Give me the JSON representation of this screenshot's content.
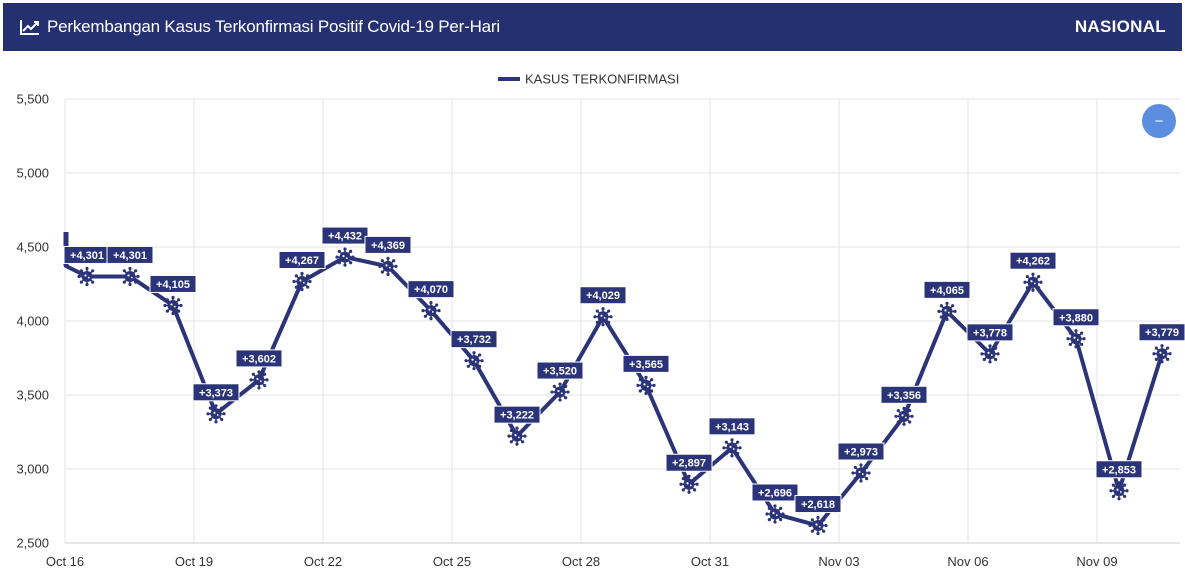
{
  "header": {
    "title": "Perkembangan Kasus Terkonfirmasi Positif Covid-19 Per-Hari",
    "region": "NASIONAL",
    "icon": "line-chart-icon"
  },
  "colors": {
    "header_bg": "#253070",
    "series": "#2b3478",
    "zoom_button": "#5b8de0"
  },
  "zoom_button": {
    "label": "−",
    "icon": "minus-icon"
  },
  "chart_data": {
    "type": "line",
    "legend": {
      "position": "top-center",
      "entries": [
        "KASUS TERKONFIRMASI"
      ]
    },
    "grid": true,
    "ylim": [
      2500,
      5500
    ],
    "yticks": [
      "2,500",
      "3,000",
      "3,500",
      "4,000",
      "4,500",
      "5,000",
      "5,500"
    ],
    "ytick_values": [
      2500,
      3000,
      3500,
      4000,
      4500,
      5000,
      5500
    ],
    "xlim": [
      "Oct 16",
      "Nov 11"
    ],
    "xticks": [
      "Oct 16",
      "Oct 19",
      "Oct 22",
      "Oct 25",
      "Oct 28",
      "Oct 31",
      "Nov 03",
      "Nov 06",
      "Nov 09"
    ],
    "series": [
      {
        "name": "KASUS TERKONFIRMASI",
        "x": [
          "Oct 16",
          "Oct 17",
          "Oct 18",
          "Oct 19",
          "Oct 20",
          "Oct 21",
          "Oct 22",
          "Oct 23",
          "Oct 24",
          "Oct 25",
          "Oct 26",
          "Oct 27",
          "Oct 28",
          "Oct 29",
          "Oct 30",
          "Oct 31",
          "Nov 01",
          "Nov 02",
          "Nov 03",
          "Nov 04",
          "Nov 05",
          "Nov 06",
          "Nov 07",
          "Nov 08",
          "Nov 09",
          "Nov 10"
        ],
        "values": [
          4301,
          4301,
          4105,
          3373,
          3602,
          4267,
          4432,
          4369,
          4070,
          3732,
          3222,
          3520,
          4029,
          3565,
          2897,
          3143,
          2696,
          2618,
          2973,
          3356,
          4065,
          3778,
          4262,
          3880,
          2853,
          3779
        ],
        "labels": [
          "+4,301",
          "+4,301",
          "+4,105",
          "+3,373",
          "+3,602",
          "+4,267",
          "+4,432",
          "+4,369",
          "+4,070",
          "+3,732",
          "+3,222",
          "+3,520",
          "+4,029",
          "+3,565",
          "+2,897",
          "+3,143",
          "+2,696",
          "+2,618",
          "+2,973",
          "+3,356",
          "+4,065",
          "+3,778",
          "+4,262",
          "+3,880",
          "+2,853",
          "+3,779"
        ]
      }
    ]
  }
}
